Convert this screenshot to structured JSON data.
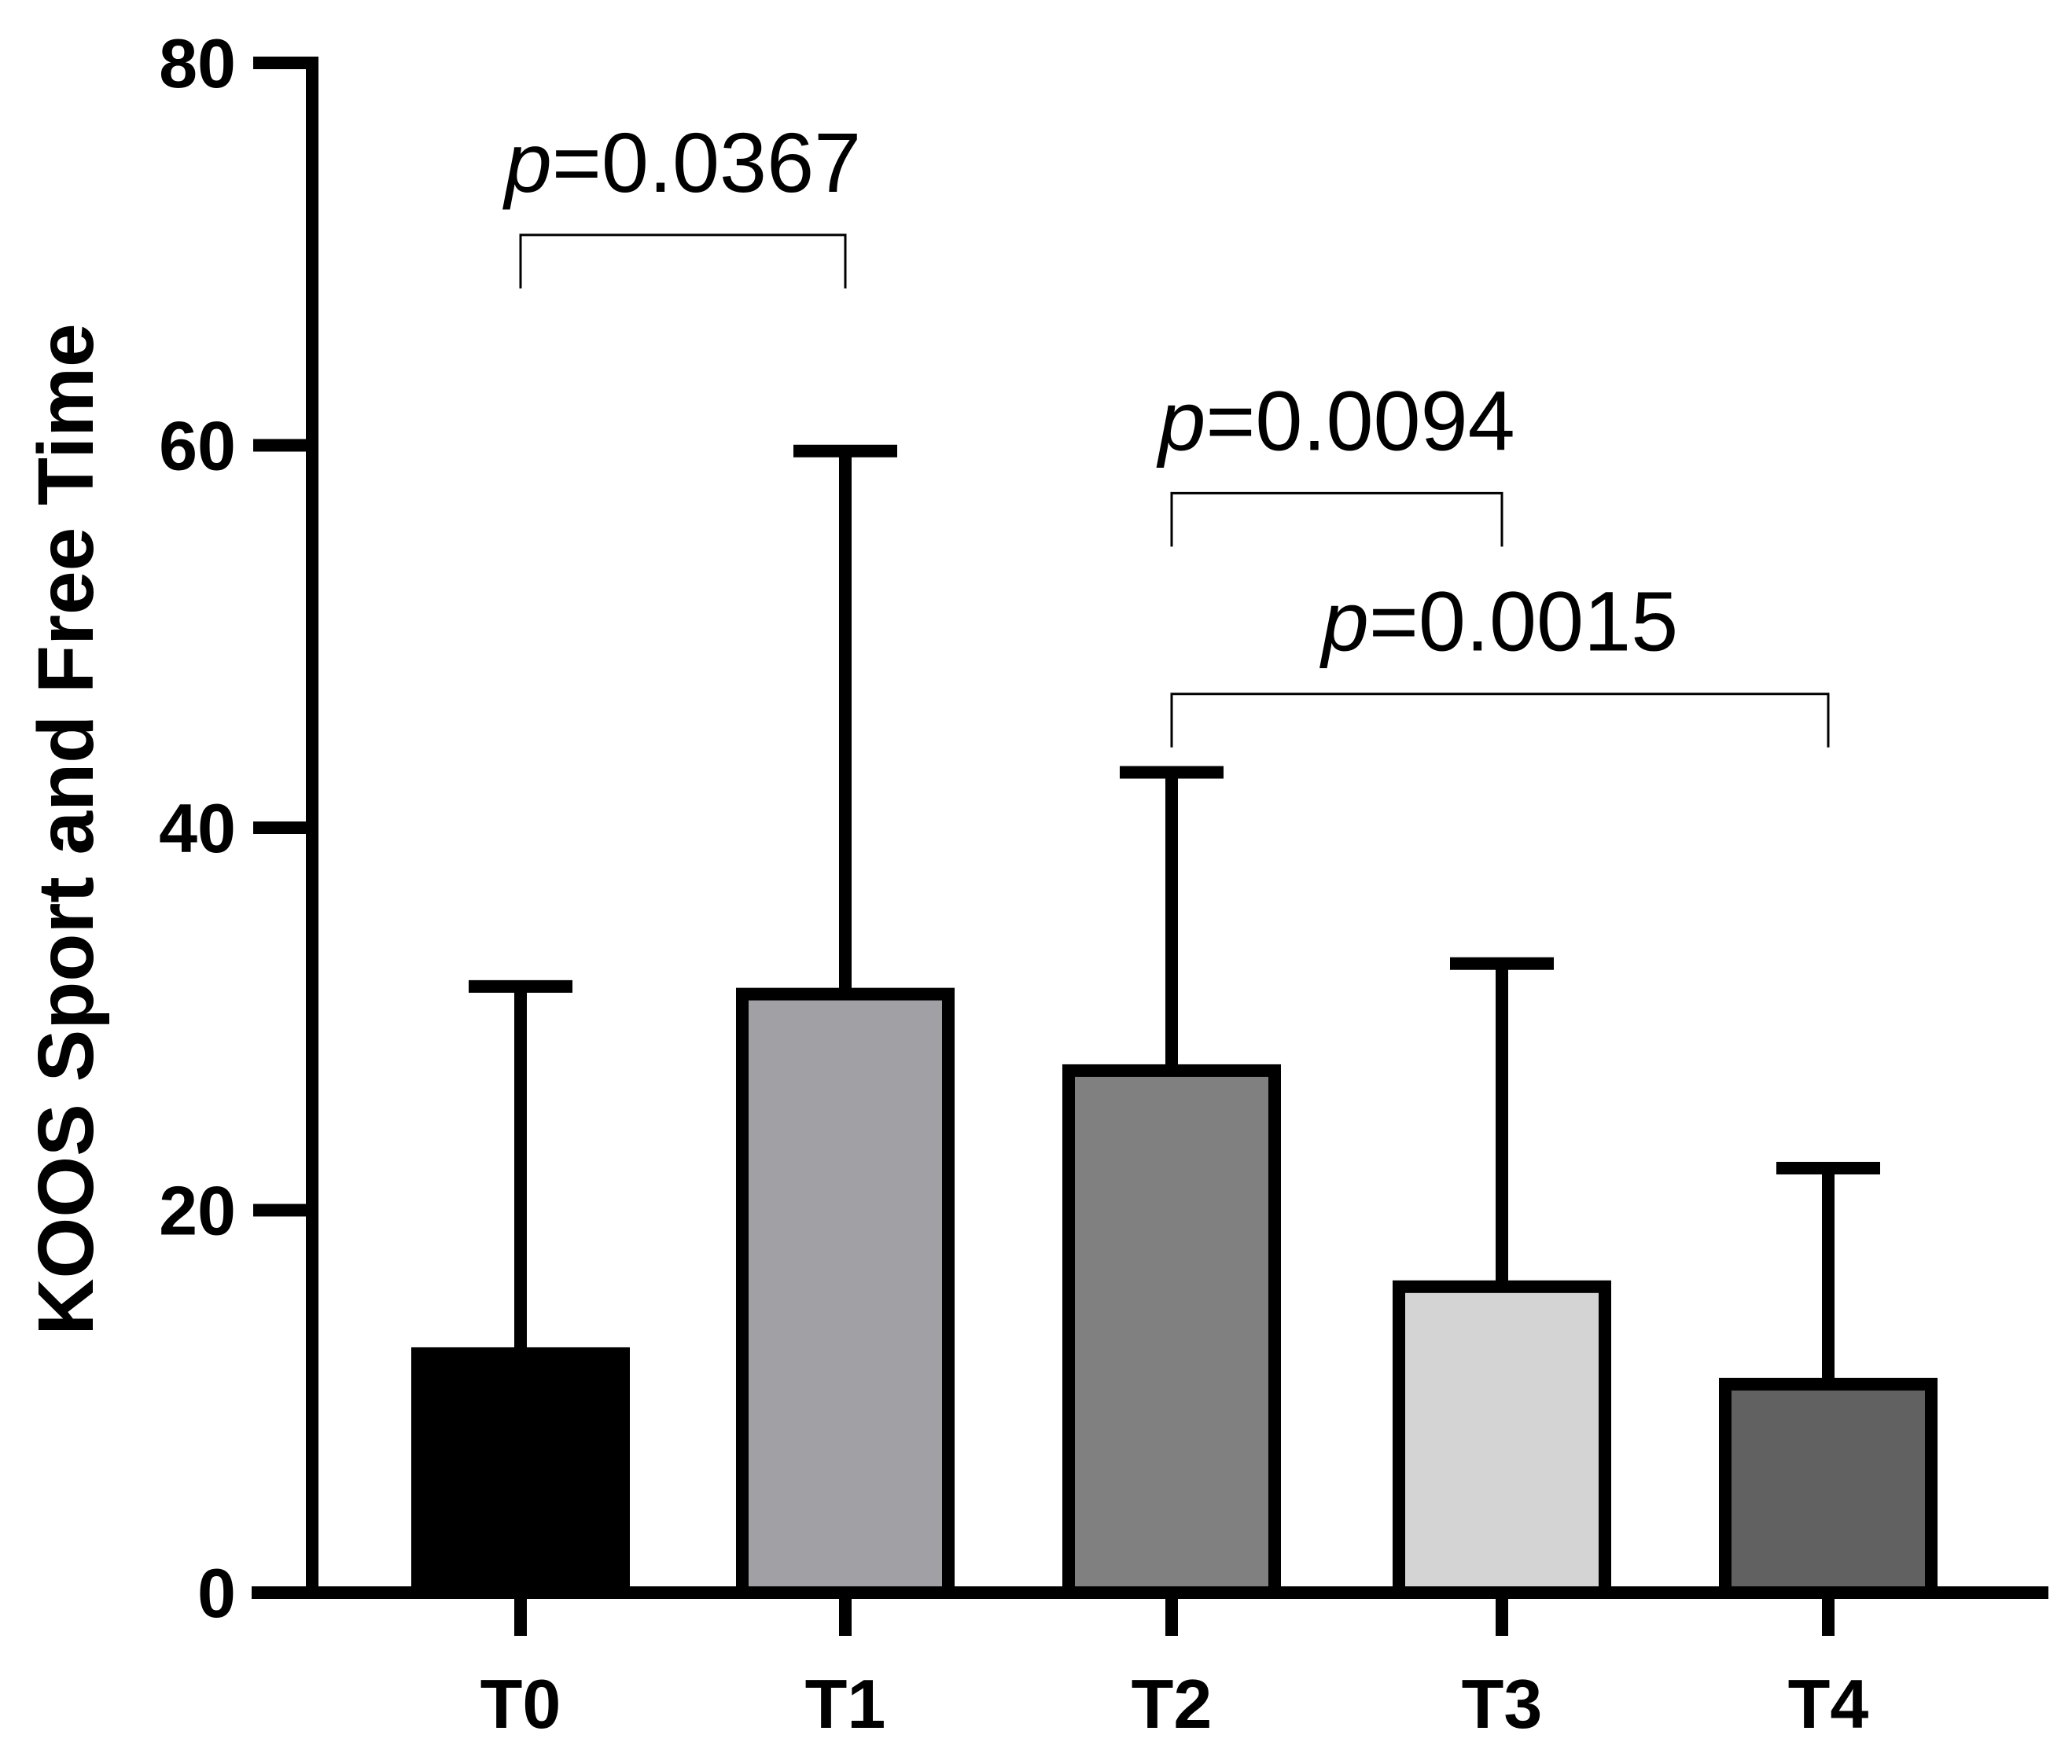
{
  "chart_data": {
    "type": "bar",
    "title": "",
    "xlabel": "",
    "ylabel": "KOOS Sport and Free Time",
    "ylim": [
      0,
      80
    ],
    "yticks": [
      0,
      20,
      40,
      60,
      80
    ],
    "categories": [
      "T0",
      "T1",
      "T2",
      "T3",
      "T4"
    ],
    "values": [
      12.5,
      31.3,
      27.3,
      16.0,
      10.9
    ],
    "error_upper": [
      31.7,
      59.7,
      42.9,
      32.9,
      22.2
    ],
    "bar_colors": [
      "#000000",
      "#a1a0a4",
      "#808080",
      "#d4d4d4",
      "#616161"
    ],
    "comparisons": [
      {
        "from": "T0",
        "to": "T1",
        "bracket_y": 71,
        "p_label": "p",
        "p_value": "=0.0367"
      },
      {
        "from": "T2",
        "to": "T3",
        "bracket_y": 57.5,
        "p_label": "p",
        "p_value": "=0.0094"
      },
      {
        "from": "T2",
        "to": "T4",
        "bracket_y": 47,
        "p_label": "p",
        "p_value": "=0.0015"
      }
    ]
  }
}
